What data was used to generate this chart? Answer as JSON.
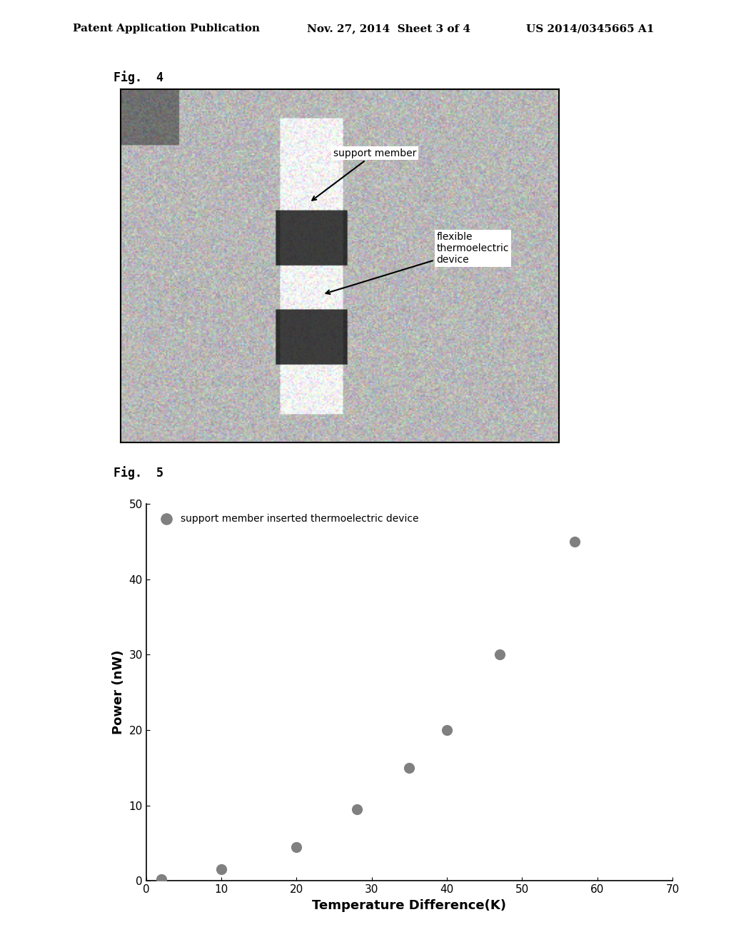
{
  "page_header_left": "Patent Application Publication",
  "page_header_center": "Nov. 27, 2014  Sheet 3 of 4",
  "page_header_right": "US 2014/0345665 A1",
  "fig4_label": "Fig.  4",
  "fig5_label": "Fig.  5",
  "scatter_x": [
    2,
    10,
    20,
    28,
    35,
    40,
    47,
    57
  ],
  "scatter_y": [
    0.2,
    1.5,
    4.5,
    9.5,
    15,
    20,
    30,
    45
  ],
  "xlabel": "Temperature Difference(K)",
  "ylabel": "Power (nW)",
  "xlim": [
    0,
    70
  ],
  "ylim": [
    0,
    50
  ],
  "xticks": [
    0,
    10,
    20,
    30,
    40,
    50,
    60,
    70
  ],
  "yticks": [
    0,
    10,
    20,
    30,
    40,
    50
  ],
  "legend_label": "support member inserted thermoelectric device",
  "marker_color": "#808080",
  "marker_size": 120,
  "background_color": "#ffffff",
  "text_color": "#000000",
  "support_member_label": "support member",
  "flexible_label": "flexible\nthermoelectric\ndevice"
}
